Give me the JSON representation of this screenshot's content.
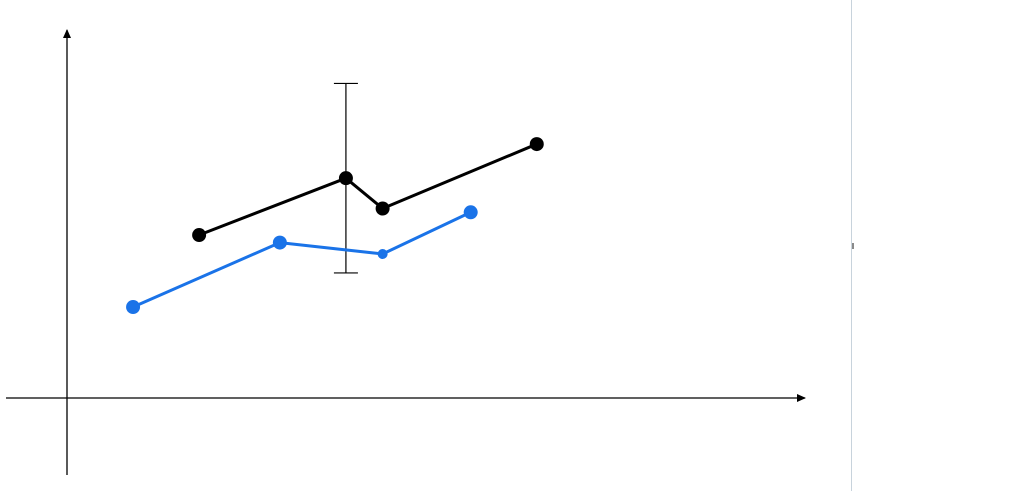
{
  "colors": {
    "axis": "#000000",
    "series_black": "#000000",
    "series_blue": "#1a73e8",
    "divider": "#c8d3dc"
  },
  "chart_data": {
    "type": "line",
    "title": "",
    "xlabel": "",
    "ylabel": "",
    "grid": false,
    "xlim": [
      0,
      10
    ],
    "ylim": [
      0,
      10
    ],
    "series": [
      {
        "color": "#000000",
        "points": [
          [
            1.8,
            4.3
          ],
          [
            3.8,
            5.8
          ],
          [
            4.3,
            5.0
          ],
          [
            6.4,
            6.7
          ]
        ],
        "error_bar": {
          "x": 3.8,
          "low": 3.3,
          "high": 8.3
        }
      },
      {
        "color": "#1a73e8",
        "points": [
          [
            0.9,
            2.4
          ],
          [
            2.9,
            4.1
          ],
          [
            4.3,
            3.8
          ],
          [
            5.5,
            4.9
          ]
        ]
      }
    ]
  }
}
